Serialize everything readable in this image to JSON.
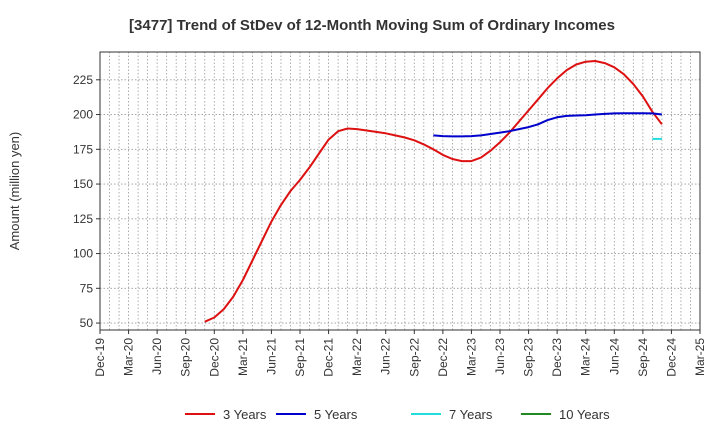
{
  "chart_data": {
    "type": "line",
    "title": "[3477]  Trend of StDev of 12-Month Moving Sum of Ordinary Incomes",
    "ylabel": "Amount (million yen)",
    "xlabel": "",
    "ylim": [
      45,
      245
    ],
    "yticks": [
      50,
      75,
      100,
      125,
      150,
      175,
      200,
      225
    ],
    "xlim": [
      "2019-12",
      "2025-03"
    ],
    "xticks": [
      "Dec-19",
      "Mar-20",
      "Jun-20",
      "Sep-20",
      "Dec-20",
      "Mar-21",
      "Jun-21",
      "Sep-21",
      "Dec-21",
      "Mar-22",
      "Jun-22",
      "Sep-22",
      "Dec-22",
      "Mar-23",
      "Jun-23",
      "Sep-23",
      "Dec-23",
      "Mar-24",
      "Jun-24",
      "Sep-24",
      "Dec-24",
      "Mar-25"
    ],
    "grid": true,
    "legend_position": "bottom",
    "series": [
      {
        "name": "3 Years",
        "color": "#dd1111",
        "points": [
          [
            "2020-11",
            51
          ],
          [
            "2020-12",
            54
          ],
          [
            "2021-01",
            60
          ],
          [
            "2021-02",
            69
          ],
          [
            "2021-03",
            81
          ],
          [
            "2021-04",
            95
          ],
          [
            "2021-05",
            109
          ],
          [
            "2021-06",
            123
          ],
          [
            "2021-07",
            135
          ],
          [
            "2021-08",
            145
          ],
          [
            "2021-09",
            153
          ],
          [
            "2021-10",
            162
          ],
          [
            "2021-11",
            172
          ],
          [
            "2021-12",
            182
          ],
          [
            "2022-01",
            188
          ],
          [
            "2022-02",
            190
          ],
          [
            "2022-03",
            189.5
          ],
          [
            "2022-04",
            188.5
          ],
          [
            "2022-05",
            187.5
          ],
          [
            "2022-06",
            186.5
          ],
          [
            "2022-07",
            185
          ],
          [
            "2022-08",
            183.5
          ],
          [
            "2022-09",
            181.5
          ],
          [
            "2022-10",
            178.5
          ],
          [
            "2022-11",
            175
          ],
          [
            "2022-12",
            171
          ],
          [
            "2023-01",
            168
          ],
          [
            "2023-02",
            166.5
          ],
          [
            "2023-03",
            166.5
          ],
          [
            "2023-04",
            169
          ],
          [
            "2023-05",
            174
          ],
          [
            "2023-06",
            180
          ],
          [
            "2023-07",
            187
          ],
          [
            "2023-08",
            195
          ],
          [
            "2023-09",
            203
          ],
          [
            "2023-10",
            211
          ],
          [
            "2023-11",
            219
          ],
          [
            "2023-12",
            226
          ],
          [
            "2024-01",
            232
          ],
          [
            "2024-02",
            236
          ],
          [
            "2024-03",
            238
          ],
          [
            "2024-04",
            238.5
          ],
          [
            "2024-05",
            237
          ],
          [
            "2024-06",
            234
          ],
          [
            "2024-07",
            229
          ],
          [
            "2024-08",
            222
          ],
          [
            "2024-09",
            213
          ],
          [
            "2024-10",
            202
          ],
          [
            "2024-11",
            193
          ]
        ]
      },
      {
        "name": "5 Years",
        "color": "#0000cc",
        "points": [
          [
            "2022-11",
            185
          ],
          [
            "2022-12",
            184.5
          ],
          [
            "2023-01",
            184.3
          ],
          [
            "2023-02",
            184.3
          ],
          [
            "2023-03",
            184.5
          ],
          [
            "2023-04",
            185
          ],
          [
            "2023-05",
            186
          ],
          [
            "2023-06",
            187
          ],
          [
            "2023-07",
            188
          ],
          [
            "2023-08",
            189.5
          ],
          [
            "2023-09",
            191
          ],
          [
            "2023-10",
            193
          ],
          [
            "2023-11",
            196
          ],
          [
            "2023-12",
            198
          ],
          [
            "2024-01",
            199
          ],
          [
            "2024-02",
            199.3
          ],
          [
            "2024-03",
            199.5
          ],
          [
            "2024-04",
            200
          ],
          [
            "2024-05",
            200.5
          ],
          [
            "2024-06",
            200.8
          ],
          [
            "2024-07",
            201
          ],
          [
            "2024-08",
            201
          ],
          [
            "2024-09",
            201
          ],
          [
            "2024-10",
            200.8
          ],
          [
            "2024-11",
            200
          ]
        ]
      },
      {
        "name": "7 Years",
        "color": "#22dddd",
        "points": [
          [
            "2024-10",
            182.5
          ],
          [
            "2024-11",
            182.5
          ]
        ]
      },
      {
        "name": "10 Years",
        "color": "#228822",
        "points": []
      }
    ]
  }
}
